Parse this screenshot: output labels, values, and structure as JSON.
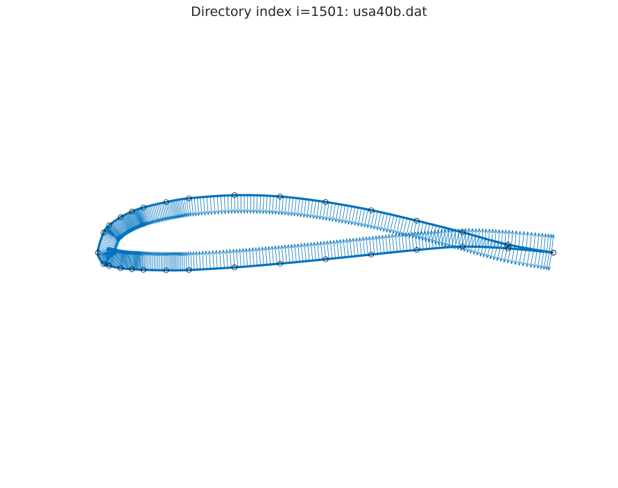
{
  "chart_data": {
    "type": "line",
    "title": "Directory index i=1501: usa40b.dat",
    "xlabel": "",
    "ylabel": "",
    "xlim": [
      -0.02,
      1.02
    ],
    "ylim": [
      -0.42,
      0.44
    ],
    "grid": false,
    "axes_visible": false,
    "colors": {
      "curve": "#0072BD",
      "normals": "#0072BD",
      "points_edge": "#000000"
    },
    "series": [
      {
        "role": "upper-surface",
        "x": [
          1.0,
          0.9,
          0.8,
          0.7,
          0.6,
          0.5,
          0.4,
          0.3,
          0.2,
          0.15,
          0.1,
          0.075,
          0.05,
          0.025,
          0.0125,
          0.0
        ],
        "y": [
          0.0,
          0.0177,
          0.0448,
          0.0701,
          0.0932,
          0.1111,
          0.1232,
          0.126,
          0.1192,
          0.1109,
          0.0991,
          0.0902,
          0.0779,
          0.06,
          0.0438,
          0.0
        ]
      },
      {
        "role": "lower-surface",
        "x": [
          0.0,
          0.0125,
          0.025,
          0.05,
          0.075,
          0.1,
          0.15,
          0.2,
          0.3,
          0.4,
          0.5,
          0.6,
          0.7,
          0.8,
          0.9,
          1.0
        ],
        "y": [
          0.0,
          -0.0248,
          -0.0289,
          -0.0342,
          -0.0362,
          -0.0376,
          -0.0387,
          -0.038,
          -0.0323,
          -0.024,
          -0.0144,
          -0.0041,
          0.0059,
          0.0133,
          0.0094,
          0.0
        ]
      }
    ],
    "normal_vectors": {
      "direction": "outward",
      "spacing": "dense"
    }
  }
}
